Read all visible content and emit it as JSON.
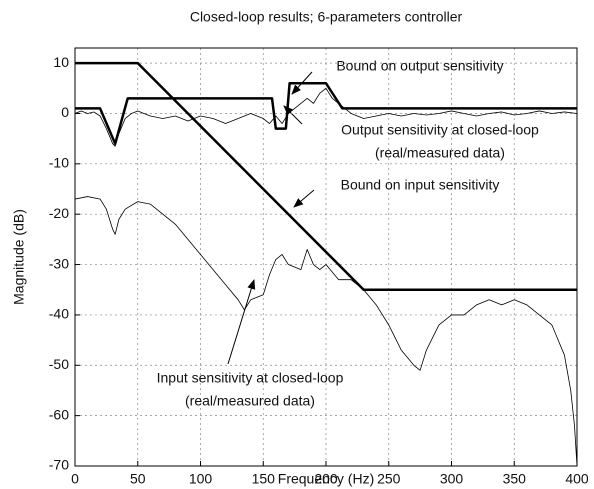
{
  "chart_data": {
    "type": "line",
    "title": "Closed-loop results; 6-parameters controller",
    "xlabel": "Frequency (Hz)",
    "ylabel": "Magnitude (dB)",
    "xlim": [
      0,
      400
    ],
    "ylim": [
      -70,
      13
    ],
    "xticks": [
      0,
      50,
      100,
      150,
      200,
      250,
      300,
      350,
      400
    ],
    "yticks": [
      -70,
      -60,
      -50,
      -40,
      -30,
      -20,
      -10,
      0,
      10
    ],
    "grid": true,
    "series": [
      {
        "name": "Bound on input sensitivity",
        "color": "#000000",
        "line_width": 2.5,
        "x": [
          0,
          50,
          230,
          400
        ],
        "values": [
          10,
          10,
          -35,
          -35
        ]
      },
      {
        "name": "Bound on output sensitivity",
        "color": "#000000",
        "line_width": 2.5,
        "x": [
          0,
          20,
          32,
          42,
          157,
          160,
          168,
          171,
          200,
          213,
          400
        ],
        "values": [
          1,
          1,
          -6,
          3,
          3,
          -3,
          -3,
          6,
          6,
          1,
          1
        ]
      },
      {
        "name": "Output sensitivity at closed-loop (real/measured data)",
        "color": "#000000",
        "line_width": 0.8,
        "x": [
          0,
          5,
          10,
          15,
          20,
          25,
          30,
          32,
          35,
          40,
          45,
          50,
          60,
          70,
          80,
          90,
          100,
          110,
          120,
          130,
          140,
          150,
          155,
          160,
          165,
          170,
          175,
          180,
          185,
          190,
          195,
          200,
          205,
          210,
          215,
          220,
          230,
          240,
          250,
          260,
          270,
          280,
          290,
          300,
          310,
          320,
          330,
          340,
          350,
          360,
          370,
          380,
          390,
          400
        ],
        "values": [
          0,
          0.5,
          0,
          0.3,
          -0.5,
          -3,
          -6,
          -6.5,
          -4,
          -1,
          0,
          0.5,
          -0.5,
          -1,
          -0.5,
          -1.5,
          -0.5,
          -1,
          -2,
          -1,
          0,
          -1,
          -2,
          -0.5,
          -2,
          0,
          1,
          2,
          3,
          2,
          4,
          5,
          3,
          2,
          1,
          0,
          -1,
          -0.5,
          0,
          -0.5,
          0,
          -0.3,
          0,
          0.5,
          0,
          -0.5,
          0,
          0.3,
          -0.3,
          0,
          0.5,
          0,
          0.3,
          0
        ]
      },
      {
        "name": "Input sensitivity at closed-loop (real/measured data)",
        "color": "#000000",
        "line_width": 0.8,
        "x": [
          0,
          10,
          20,
          25,
          30,
          32,
          35,
          40,
          50,
          60,
          70,
          80,
          90,
          100,
          110,
          120,
          130,
          135,
          140,
          150,
          155,
          160,
          165,
          170,
          180,
          185,
          190,
          195,
          200,
          210,
          220,
          230,
          240,
          250,
          260,
          270,
          275,
          280,
          290,
          300,
          310,
          320,
          330,
          340,
          350,
          360,
          370,
          380,
          385,
          390,
          395,
          398,
          400
        ],
        "values": [
          -17,
          -16.5,
          -17,
          -19,
          -23,
          -24,
          -21,
          -19,
          -17.5,
          -18,
          -20,
          -22,
          -25,
          -28,
          -31,
          -34,
          -37,
          -39,
          -37,
          -36,
          -32,
          -29,
          -28,
          -30,
          -31,
          -27,
          -30,
          -31,
          -30,
          -33,
          -33,
          -35,
          -38,
          -42,
          -47,
          -50,
          -51,
          -47,
          -42,
          -40,
          -40,
          -38,
          -37,
          -38,
          -37,
          -38,
          -40,
          -42,
          -45,
          -48,
          -55,
          -62,
          -70
        ]
      }
    ],
    "annotations": [
      {
        "lines": [
          "Bound on output sensitivity"
        ]
      },
      {
        "lines": [
          "Output sensitivity at closed-loop",
          "(real/measured data)"
        ]
      },
      {
        "lines": [
          "Bound on input sensitivity"
        ]
      },
      {
        "lines": [
          "Input sensitivity at closed-loop",
          "(real/measured data)"
        ]
      }
    ]
  }
}
